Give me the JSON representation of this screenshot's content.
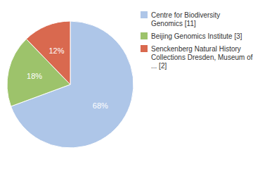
{
  "chart_data": {
    "type": "pie",
    "categories": [
      "Centre for Biodiversity\nGenomics [11]",
      "Beijing Genomics Institute [3]",
      "Senckenberg Natural History\nCollections Dresden, Museum of\n... [2]"
    ],
    "values": [
      68,
      18,
      12
    ],
    "value_labels": [
      "68%",
      "18%",
      "12%"
    ],
    "colors": [
      "#aec6e8",
      "#9dc36b",
      "#d9694f"
    ],
    "data_labels": true,
    "legend": "right"
  }
}
